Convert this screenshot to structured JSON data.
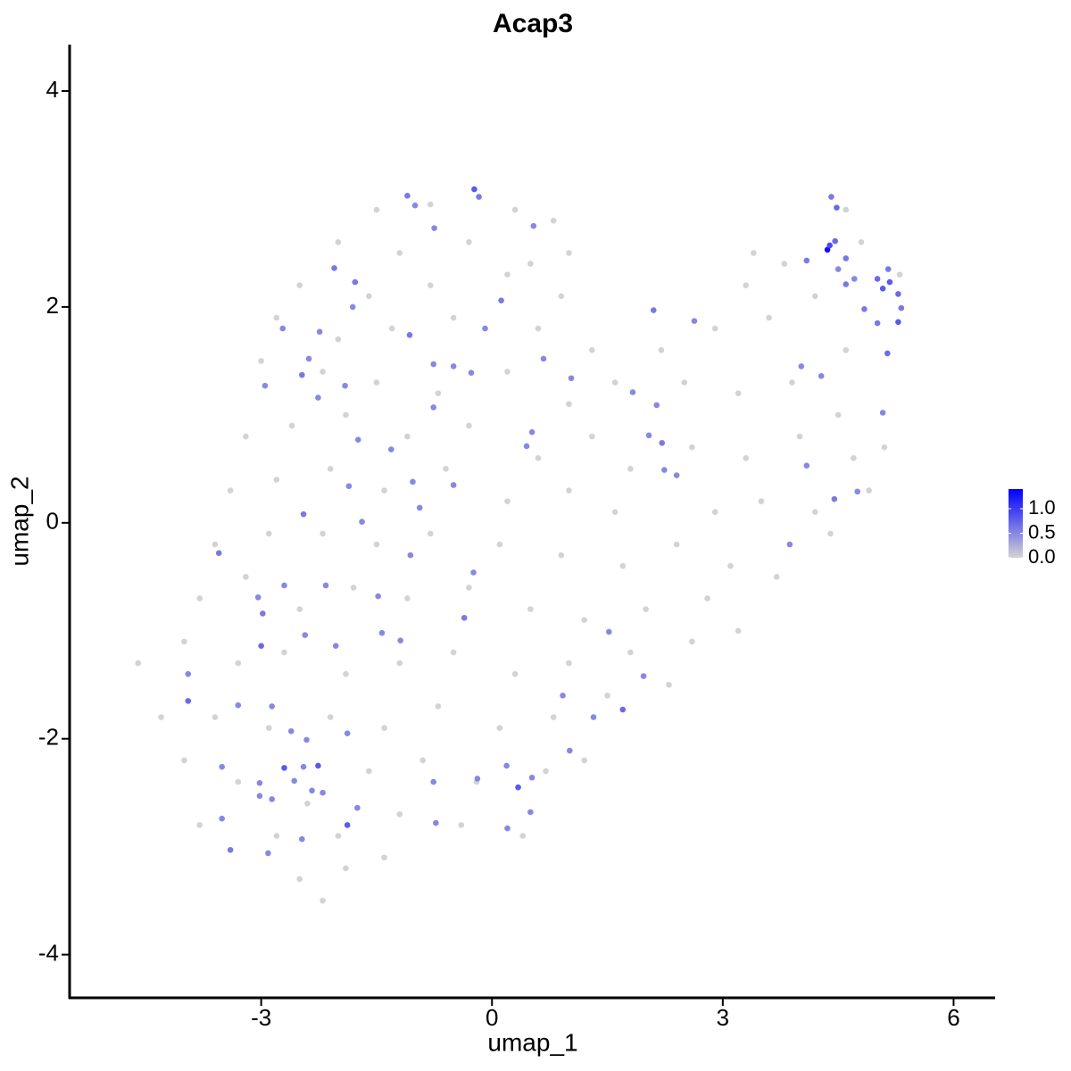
{
  "chart_data": {
    "type": "scatter",
    "title": "Acap3",
    "x_label": "umap_1",
    "y_label": "umap_2",
    "xlim": [
      -5.49,
      6.54
    ],
    "ylim": [
      -4.4,
      4.43
    ],
    "xticks": [
      -3,
      0,
      3,
      6
    ],
    "yticks": [
      -4,
      -2,
      0,
      2,
      4
    ],
    "colors": [
      "#d3d3d3",
      "#0000ff"
    ],
    "colorlim": [
      0,
      1.4
    ],
    "colorticks": [
      {
        "value": 0,
        "label": "0.0"
      },
      {
        "value": 0.5,
        "label": "0.5"
      },
      {
        "value": 1,
        "label": "1.0"
      }
    ],
    "x": [
      -1.5,
      -0.8,
      0.3,
      0.8,
      -2,
      -1.2,
      -0.3,
      0.5,
      1,
      -2.5,
      -1.6,
      -0.8,
      0.2,
      0.9,
      -2.8,
      -2,
      -1.3,
      -0.5,
      0.6,
      1.3,
      -3,
      -2.2,
      -1.5,
      -0.7,
      0.2,
      1,
      1.6,
      -3.2,
      -2.6,
      -1.9,
      -1.1,
      -0.3,
      0.6,
      1.3,
      1.8,
      -3.4,
      -2.8,
      -2.1,
      -1.4,
      -0.6,
      0.2,
      1,
      1.6,
      -3.6,
      -2.9,
      -2.2,
      -1.5,
      -0.8,
      0.1,
      0.9,
      1.7,
      2.4,
      -3.8,
      -3.2,
      -2.5,
      -1.8,
      -1.1,
      -0.3,
      0.5,
      1.2,
      2,
      2.8,
      -4,
      -3.3,
      -2.7,
      -1.9,
      -1.2,
      -0.5,
      0.3,
      1,
      1.8,
      2.6,
      3.2,
      -4.6,
      -4.3,
      -3.6,
      -2.9,
      -2.1,
      -1.4,
      -0.7,
      0.1,
      0.8,
      1.5,
      2.3,
      -4,
      -3.3,
      -2.4,
      -1.6,
      -0.9,
      -0.2,
      0.7,
      1.2,
      -3.8,
      -2.8,
      -2,
      -1.2,
      -0.4,
      0.4,
      -2.5,
      -1.9,
      -2.2,
      -1.4,
      2.2,
      2.9,
      3.3,
      3.8,
      3.6,
      4.2,
      4.6,
      2.5,
      3.2,
      3.9,
      4.5,
      5.1,
      2.6,
      3.3,
      4.0,
      4.7,
      2.9,
      3.5,
      4.2,
      3.1,
      3.7,
      4.4,
      4.9,
      5.3,
      4.8,
      4.6,
      3.4,
      -0.23,
      -0.17,
      -1.0,
      -1.1,
      -0.75,
      0.54,
      -2.05,
      -1.78,
      -1.81,
      -2.72,
      -2.24,
      -2.38,
      -2.47,
      -2.95,
      -2.26,
      -1.91,
      -1.07,
      -0.76,
      -0.5,
      -0.27,
      -0.09,
      0.12,
      0.67,
      1.03,
      1.83,
      2.14,
      2.1,
      2.63,
      2.04,
      2.21,
      2.24,
      2.4,
      0.52,
      0.45,
      -0.5,
      -0.76,
      -1.31,
      -1.74,
      -1.86,
      -1.69,
      -2.45,
      -3.55,
      -1.03,
      -0.94,
      -1.06,
      -0.24,
      -0.36,
      -1.48,
      -2.16,
      -2.7,
      -3.04,
      -2.98,
      -2.43,
      -3.0,
      -2.03,
      -1.43,
      -1.19,
      -3.95,
      -3.95,
      -3.3,
      -2.86,
      -2.61,
      -2.41,
      -1.88,
      -3.51,
      -2.7,
      -2.26,
      -2.45,
      -2.57,
      -3.02,
      -2.34,
      -2.2,
      -1.75,
      -3.02,
      -2.86,
      -3.51,
      -1.88,
      -2.47,
      -3.4,
      -2.91,
      -0.76,
      -0.19,
      -0.73,
      0.19,
      0.34,
      0.52,
      0.5,
      0.2,
      1.01,
      1.32,
      1.7,
      0.92,
      1.97,
      1.52,
      3.87,
      4.09,
      4.75,
      4.45,
      5.08,
      5.14,
      4.28,
      4.02,
      5.28,
      5.01,
      4.84,
      5.32,
      5.17,
      5.28,
      5.01,
      5.08,
      5.15,
      4.71,
      4.6,
      4.5,
      4.6,
      4.36,
      4.39,
      4.46,
      4.09,
      4.48,
      4.41
    ],
    "y": [
      2.9,
      2.95,
      2.9,
      2.8,
      2.6,
      2.5,
      2.6,
      2.4,
      2.5,
      2.2,
      2.1,
      2.2,
      2.3,
      2.1,
      1.9,
      1.7,
      1.8,
      1.9,
      1.8,
      1.6,
      1.5,
      1.4,
      1.3,
      1.2,
      1.4,
      1.1,
      1.3,
      0.8,
      0.9,
      1.0,
      0.8,
      0.9,
      0.6,
      0.8,
      0.5,
      0.3,
      0.4,
      0.5,
      0.3,
      0.5,
      0.2,
      0.3,
      0.1,
      -0.2,
      -0.1,
      -0.1,
      -0.2,
      -0.1,
      -0.2,
      -0.3,
      -0.4,
      -0.2,
      -0.7,
      -0.5,
      -0.8,
      -0.6,
      -0.7,
      -0.6,
      -0.8,
      -0.9,
      -0.8,
      -0.7,
      -1.1,
      -1.3,
      -1.2,
      -1.4,
      -1.3,
      -1.2,
      -1.4,
      -1.3,
      -1.2,
      -1.1,
      -1.0,
      -1.3,
      -1.8,
      -1.8,
      -1.9,
      -1.8,
      -1.9,
      -1.7,
      -1.9,
      -1.8,
      -1.6,
      -1.5,
      -2.2,
      -2.4,
      -2.6,
      -2.3,
      -2.2,
      -2.4,
      -2.3,
      -2.2,
      -2.8,
      -2.9,
      -2.9,
      -2.7,
      -2.8,
      -2.9,
      -3.3,
      -3.2,
      -3.5,
      -3.1,
      1.6,
      1.8,
      2.2,
      2.4,
      1.9,
      2.1,
      1.6,
      1.3,
      1.2,
      1.3,
      1.0,
      0.7,
      0.7,
      0.6,
      0.8,
      0.6,
      0.1,
      0.2,
      0.1,
      -0.4,
      -0.5,
      -0.1,
      0.3,
      2.3,
      2.6,
      2.9,
      2.5,
      3.09,
      3.02,
      2.94,
      3.03,
      2.73,
      2.75,
      2.36,
      2.23,
      2.0,
      1.8,
      1.77,
      1.52,
      1.37,
      1.27,
      1.16,
      1.27,
      1.74,
      1.47,
      1.45,
      1.39,
      1.8,
      2.06,
      1.52,
      1.34,
      1.21,
      1.09,
      1.97,
      1.87,
      0.81,
      0.74,
      0.49,
      0.44,
      0.84,
      0.71,
      0.35,
      1.07,
      0.68,
      0.77,
      0.34,
      0.01,
      0.08,
      -0.28,
      0.38,
      0.14,
      -0.3,
      -0.46,
      -0.88,
      -0.68,
      -0.58,
      -0.58,
      -0.69,
      -0.84,
      -1.04,
      -1.14,
      -1.14,
      -1.02,
      -1.09,
      -1.4,
      -1.65,
      -1.69,
      -1.7,
      -1.93,
      -2.01,
      -1.95,
      -2.26,
      -2.27,
      -2.25,
      -2.26,
      -2.39,
      -2.41,
      -2.48,
      -2.5,
      -2.64,
      -2.53,
      -2.56,
      -2.74,
      -2.8,
      -2.93,
      -3.03,
      -3.06,
      -2.4,
      -2.37,
      -2.78,
      -2.25,
      -2.45,
      -2.36,
      -2.68,
      -2.83,
      -2.11,
      -1.8,
      -1.73,
      -1.6,
      -1.42,
      -1.01,
      -0.2,
      0.53,
      0.29,
      0.22,
      1.02,
      1.57,
      1.36,
      1.45,
      1.86,
      1.85,
      1.98,
      1.99,
      2.23,
      2.12,
      2.26,
      2.17,
      2.35,
      2.26,
      2.21,
      2.35,
      2.45,
      2.53,
      2.57,
      2.61,
      2.43,
      2.92,
      3.02
    ],
    "values": [
      0,
      0,
      0,
      0,
      0,
      0,
      0,
      0,
      0,
      0,
      0,
      0,
      0,
      0,
      0,
      0,
      0,
      0,
      0,
      0,
      0,
      0,
      0,
      0,
      0,
      0,
      0,
      0,
      0,
      0,
      0,
      0,
      0,
      0,
      0,
      0,
      0,
      0,
      0,
      0,
      0,
      0,
      0,
      0,
      0,
      0,
      0,
      0,
      0,
      0,
      0,
      0,
      0,
      0,
      0,
      0,
      0,
      0,
      0,
      0,
      0,
      0,
      0,
      0,
      0,
      0,
      0,
      0,
      0,
      0,
      0,
      0,
      0,
      0,
      0,
      0,
      0,
      0,
      0,
      0,
      0,
      0,
      0,
      0,
      0,
      0,
      0,
      0,
      0,
      0,
      0,
      0,
      0,
      0,
      0,
      0,
      0,
      0,
      0,
      0,
      0,
      0,
      0,
      0,
      0,
      0,
      0,
      0,
      0,
      0,
      0,
      0,
      0,
      0,
      0,
      0,
      0,
      0,
      0,
      0,
      0,
      0,
      0,
      0,
      0,
      0,
      0,
      0,
      0,
      0.8,
      0.6,
      0.5,
      0.6,
      0.5,
      0.5,
      0.6,
      0.6,
      0.5,
      0.5,
      0.5,
      0.5,
      0.6,
      0.5,
      0.5,
      0.5,
      0.6,
      0.5,
      0.5,
      0.5,
      0.5,
      0.6,
      0.5,
      0.5,
      0.5,
      0.5,
      0.6,
      0.5,
      0.5,
      0.6,
      0.5,
      0.5,
      0.5,
      0.5,
      0.5,
      0.5,
      0.5,
      0.5,
      0.5,
      0.5,
      0.6,
      0.6,
      0.5,
      0.5,
      0.5,
      0.5,
      0.6,
      0.5,
      0.5,
      0.5,
      0.5,
      0.6,
      0.5,
      0.7,
      0.5,
      0.5,
      0.5,
      0.5,
      0.7,
      0.5,
      0.5,
      0.5,
      0.5,
      0.5,
      0.5,
      0.8,
      0.8,
      0.5,
      0.5,
      0.5,
      0.5,
      0.5,
      0.5,
      0.5,
      0.5,
      0.5,
      0.8,
      0.5,
      0.6,
      0.5,
      0.5,
      0.5,
      0.5,
      0.5,
      0.8,
      0.5,
      0.5,
      0.5,
      0.5,
      0.5,
      0.7,
      0.5,
      0.5,
      0.5,
      0.5,
      0.5,
      0.5,
      0.6,
      0.5,
      0.7,
      0.5,
      0.5,
      0.8,
      0.6,
      0.6,
      0.6,
      0.8,
      0.7,
      0.7,
      0.8,
      0.6,
      0.5,
      0.6,
      0.5,
      0.6,
      1.3,
      0.9,
      0.7,
      0.6,
      0.7,
      0.6
    ]
  }
}
